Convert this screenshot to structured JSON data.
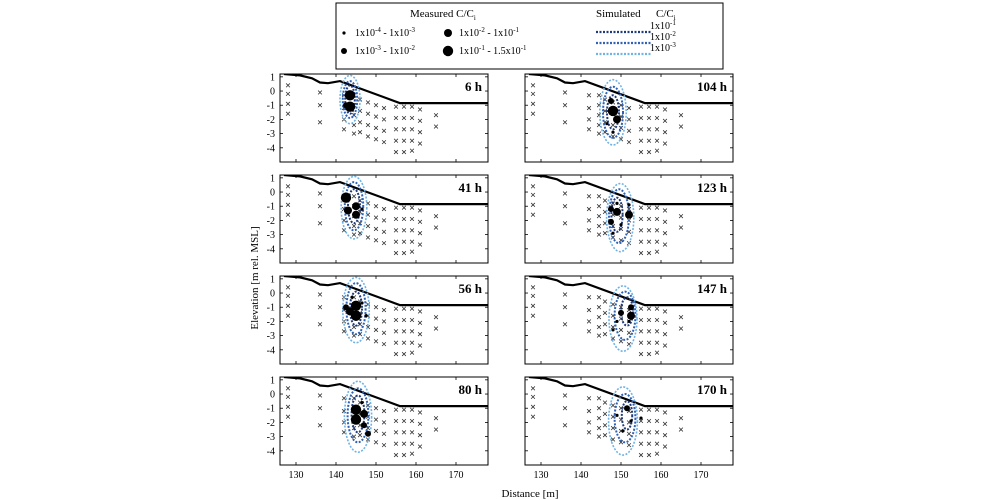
{
  "chart_data": {
    "type": "scatter",
    "panel_layout": "4 rows x 2 columns",
    "xlabel": "Distance [m]",
    "ylabel": "Elevation [m rel. MSL]",
    "xlim": [
      126,
      178
    ],
    "ylim": [
      -5,
      1.2
    ],
    "xticks": [
      130,
      140,
      150,
      160,
      170
    ],
    "yticks": [
      1,
      0,
      -1,
      -2,
      -3,
      -4
    ],
    "grid": false,
    "legend": {
      "placement": "top-center",
      "measured_title": "Measured C/C",
      "measured_title_sub": "i",
      "simulated_title": "Simulated",
      "simulated_var": "C/C",
      "simulated_var_sub": "i",
      "measured_classes": [
        {
          "base": "1x10",
          "exp": "-4",
          "mid": " - 1x10",
          "exp2": "-3",
          "size": 1
        },
        {
          "base": "1x10",
          "exp": "-3",
          "mid": " - 1x10",
          "exp2": "-2",
          "size": 2
        },
        {
          "base": "1x10",
          "exp": "-2",
          "mid": " - 1x10",
          "exp2": "-1",
          "size": 3
        },
        {
          "base": "1x10",
          "exp": "-1",
          "mid": " - 1.5x10",
          "exp2": "-1",
          "size": 4
        }
      ],
      "simulated_contours": [
        {
          "base": "1x10",
          "exp": "-1",
          "color": "#1f3a7a"
        },
        {
          "base": "1x10",
          "exp": "-2",
          "color": "#2f62b4"
        },
        {
          "base": "1x10",
          "exp": "-3",
          "color": "#6fb3e6"
        }
      ]
    },
    "ground_surface": [
      [
        127,
        1.2
      ],
      [
        131,
        1.1
      ],
      [
        134,
        0.9
      ],
      [
        136,
        0.6
      ],
      [
        138,
        0.55
      ],
      [
        141,
        0.7
      ],
      [
        156,
        -0.85
      ],
      [
        178,
        -0.85
      ]
    ],
    "sample_points": [
      [
        128,
        0.4
      ],
      [
        128,
        -0.2
      ],
      [
        128,
        -0.9
      ],
      [
        128,
        -1.6
      ],
      [
        136,
        -0.1
      ],
      [
        136,
        -1.0
      ],
      [
        136,
        -2.2
      ],
      [
        142,
        -0.3
      ],
      [
        142,
        -1.2
      ],
      [
        142,
        -2.0
      ],
      [
        142,
        -2.7
      ],
      [
        144.5,
        -0.3
      ],
      [
        144.5,
        -1.0
      ],
      [
        144.5,
        -1.7
      ],
      [
        144.5,
        -2.4
      ],
      [
        144.5,
        -3.0
      ],
      [
        146,
        -0.6
      ],
      [
        146,
        -1.4
      ],
      [
        146,
        -2.2
      ],
      [
        146,
        -2.9
      ],
      [
        148,
        -0.8
      ],
      [
        148,
        -1.6
      ],
      [
        148,
        -2.4
      ],
      [
        148,
        -3.2
      ],
      [
        150,
        -1.0
      ],
      [
        150,
        -1.8
      ],
      [
        150,
        -2.6
      ],
      [
        150,
        -3.4
      ],
      [
        152,
        -1.2
      ],
      [
        152,
        -2.0
      ],
      [
        152,
        -2.8
      ],
      [
        152,
        -3.6
      ],
      [
        155,
        -1.1
      ],
      [
        155,
        -1.9
      ],
      [
        155,
        -2.7
      ],
      [
        155,
        -3.5
      ],
      [
        155,
        -4.3
      ],
      [
        157,
        -1.1
      ],
      [
        157,
        -1.9
      ],
      [
        157,
        -2.7
      ],
      [
        157,
        -3.5
      ],
      [
        157,
        -4.3
      ],
      [
        159,
        -1.1
      ],
      [
        159,
        -1.9
      ],
      [
        159,
        -2.7
      ],
      [
        159,
        -3.5
      ],
      [
        159,
        -4.2
      ],
      [
        161,
        -1.3
      ],
      [
        161,
        -2.1
      ],
      [
        161,
        -2.9
      ],
      [
        161,
        -3.7
      ],
      [
        165,
        -1.7
      ],
      [
        165,
        -2.5
      ]
    ],
    "panels": [
      {
        "label": "6 h",
        "measured": [
          [
            143.5,
            -0.3,
            4
          ],
          [
            143.5,
            -1.1,
            4
          ],
          [
            142.5,
            -1.0,
            2
          ]
        ],
        "contours": [
          [
            143.5,
            -0.6,
            1.2,
            1.0
          ],
          [
            143.5,
            -0.6,
            1.8,
            1.3
          ],
          [
            143.5,
            -0.6,
            2.5,
            1.7
          ]
        ]
      },
      {
        "label": "104 h",
        "measured": [
          [
            148,
            -1.4,
            4
          ],
          [
            147.5,
            -0.7,
            2
          ],
          [
            149,
            -2.0,
            3
          ],
          [
            146.5,
            -2.3,
            1
          ],
          [
            148,
            -2.9,
            1
          ]
        ],
        "contours": [
          [
            148,
            -1.5,
            1.5,
            1.2
          ],
          [
            148,
            -1.5,
            2.5,
            1.8
          ],
          [
            148,
            -1.5,
            3.3,
            2.3
          ]
        ]
      },
      {
        "label": "41 h",
        "measured": [
          [
            142.5,
            -0.4,
            4
          ],
          [
            143,
            -1.3,
            3
          ],
          [
            145,
            -1.0,
            3
          ],
          [
            145,
            -1.6,
            3
          ],
          [
            146.5,
            -1.2,
            1
          ]
        ],
        "contours": [
          [
            144.5,
            -1.0,
            1.5,
            1.2
          ],
          [
            144.5,
            -1.0,
            2.3,
            1.7
          ],
          [
            144.5,
            -1.1,
            3.2,
            2.2
          ]
        ]
      },
      {
        "label": "123 h",
        "measured": [
          [
            149,
            -1.4,
            3
          ],
          [
            152,
            -1.6,
            3
          ],
          [
            147.5,
            -1.2,
            2
          ],
          [
            147.5,
            -2.1,
            2
          ],
          [
            149,
            -0.8,
            1
          ],
          [
            150,
            -2.3,
            1
          ],
          [
            152,
            -0.9,
            1
          ],
          [
            148,
            -2.9,
            1
          ]
        ],
        "contours": [
          [
            149,
            -1.6,
            1.4,
            1.2
          ],
          [
            149.5,
            -1.7,
            2.5,
            1.9
          ],
          [
            149.8,
            -1.8,
            3.4,
            2.4
          ]
        ]
      },
      {
        "label": "56 h",
        "measured": [
          [
            145,
            -0.9,
            4
          ],
          [
            145,
            -1.6,
            4
          ],
          [
            143.5,
            -1.3,
            3
          ],
          [
            142.5,
            -1.0,
            2
          ],
          [
            144,
            -0.3,
            1
          ],
          [
            147.5,
            -1.6,
            1
          ],
          [
            146.5,
            -0.7,
            1
          ]
        ],
        "contours": [
          [
            145,
            -1.1,
            1.5,
            1.2
          ],
          [
            145,
            -1.1,
            2.4,
            1.8
          ],
          [
            145,
            -1.2,
            3.3,
            2.3
          ]
        ]
      },
      {
        "label": "147 h",
        "measured": [
          [
            152.5,
            -1.6,
            3
          ],
          [
            152.5,
            -1.0,
            2
          ],
          [
            150,
            -1.4,
            2
          ],
          [
            149,
            -2.0,
            1
          ],
          [
            148,
            -2.6,
            1
          ],
          [
            152,
            -2.0,
            1
          ]
        ],
        "contours": [
          [
            151.5,
            -1.3,
            1.5,
            1.0
          ],
          [
            151,
            -1.6,
            2.6,
            1.7
          ],
          [
            150.5,
            -1.8,
            3.5,
            2.3
          ]
        ]
      },
      {
        "label": "80 h",
        "measured": [
          [
            145,
            -1.1,
            4
          ],
          [
            145,
            -1.8,
            4
          ],
          [
            147,
            -1.4,
            3
          ],
          [
            147,
            -2.2,
            2
          ],
          [
            148,
            -2.8,
            2
          ],
          [
            146.5,
            -0.6,
            1
          ]
        ],
        "contours": [
          [
            145.5,
            -1.4,
            1.6,
            1.3
          ],
          [
            145.5,
            -1.5,
            2.6,
            1.9
          ],
          [
            145.5,
            -1.6,
            3.4,
            2.5
          ]
        ]
      },
      {
        "label": "170 h",
        "measured": [
          [
            151.5,
            -1.0,
            2
          ],
          [
            152.5,
            -1.9,
            1
          ],
          [
            149,
            -1.5,
            1
          ],
          [
            155,
            -1.7,
            1
          ],
          [
            150.5,
            -2.6,
            1
          ]
        ],
        "contours": [
          [
            151.5,
            -1.5,
            1.3,
            1.0
          ],
          [
            151,
            -1.7,
            2.6,
            1.7
          ],
          [
            150.5,
            -1.9,
            3.6,
            2.4
          ]
        ]
      }
    ]
  }
}
